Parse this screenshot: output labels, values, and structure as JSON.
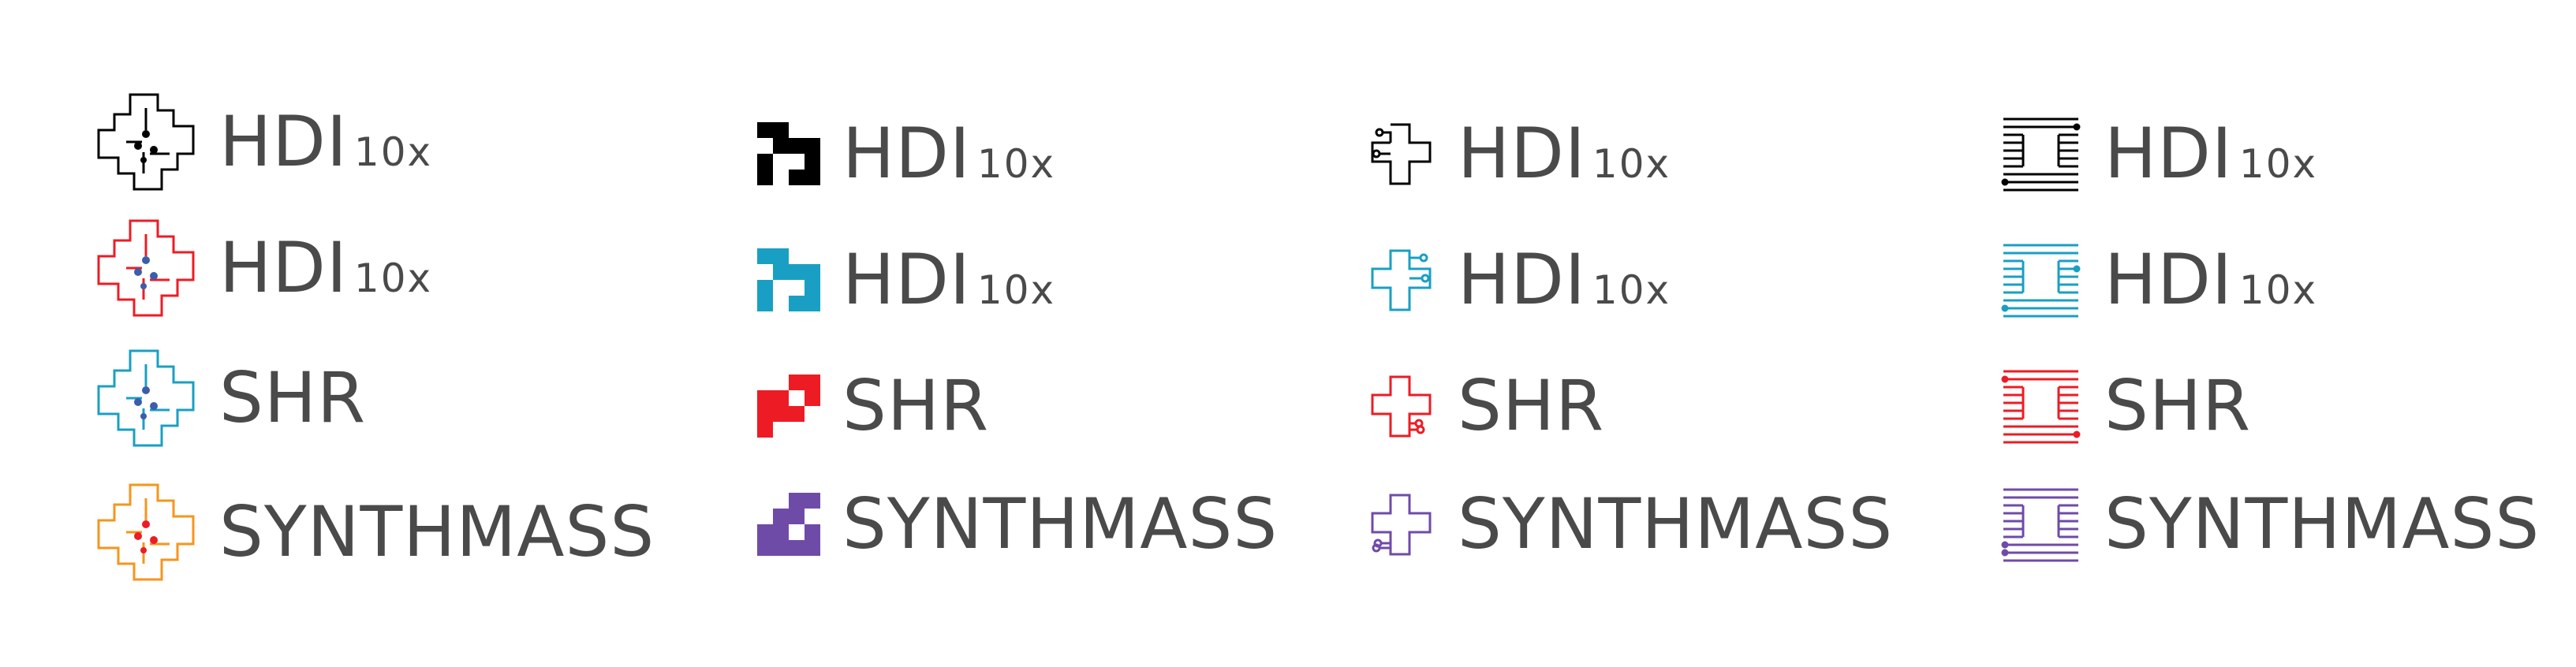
{
  "colors": {
    "text": "#4a4a4a",
    "black": "#000000",
    "red": "#ed1c24",
    "cyan": "#1a9fc4",
    "orange": "#f7941d",
    "purple": "#6f4ba8",
    "dots_blue": "#3c5dab"
  },
  "columns": [
    {
      "icon_style": "cross-network-outline",
      "logos": [
        {
          "name": "HDI",
          "suffix": "10x",
          "color": "black"
        },
        {
          "name": "HDI",
          "suffix": "10x",
          "color": "red"
        },
        {
          "name": "SHR",
          "suffix": "",
          "color": "cyan"
        },
        {
          "name": "SYNTHMASS",
          "suffix": "",
          "color": "orange"
        }
      ]
    },
    {
      "icon_style": "pixel-blocks",
      "logos": [
        {
          "name": "HDI",
          "suffix": "10x",
          "color": "black"
        },
        {
          "name": "HDI",
          "suffix": "10x",
          "color": "cyan"
        },
        {
          "name": "SHR",
          "suffix": "",
          "color": "red"
        },
        {
          "name": "SYNTHMASS",
          "suffix": "",
          "color": "purple"
        }
      ]
    },
    {
      "icon_style": "cross-circuit-outline",
      "logos": [
        {
          "name": "HDI",
          "suffix": "10x",
          "color": "black"
        },
        {
          "name": "HDI",
          "suffix": "10x",
          "color": "cyan"
        },
        {
          "name": "SHR",
          "suffix": "",
          "color": "red"
        },
        {
          "name": "SYNTHMASS",
          "suffix": "",
          "color": "purple"
        }
      ]
    },
    {
      "icon_style": "striped-lines",
      "logos": [
        {
          "name": "HDI",
          "suffix": "10x",
          "color": "black"
        },
        {
          "name": "HDI",
          "suffix": "10x",
          "color": "cyan"
        },
        {
          "name": "SHR",
          "suffix": "",
          "color": "red"
        },
        {
          "name": "SYNTHMASS",
          "suffix": "",
          "color": "purple"
        }
      ]
    }
  ]
}
